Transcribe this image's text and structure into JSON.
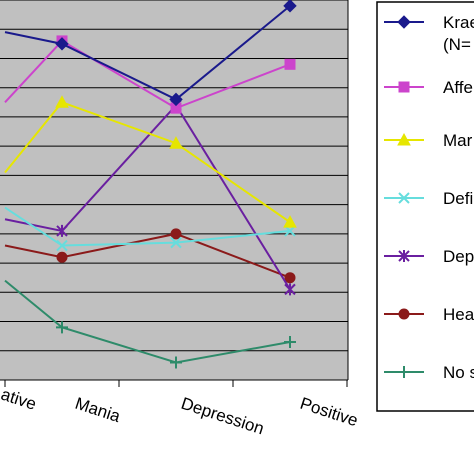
{
  "chart_data": {
    "type": "line",
    "title": "",
    "xlabel": "",
    "ylabel": "",
    "categories": [
      "Negative",
      "Mania",
      "Depression",
      "Positive"
    ],
    "category_labels_visible": [
      "ative",
      "Mania",
      "Depression",
      "Positive"
    ],
    "ylim": [
      0,
      13
    ],
    "gridlines": [
      1,
      2,
      3,
      4,
      5,
      6,
      7,
      8,
      9,
      10,
      11,
      12,
      13
    ],
    "grid": true,
    "legend_position": "right",
    "series": [
      {
        "name": "Krae",
        "name_line2": "(N=",
        "color": "#1a1a8c",
        "marker": "diamond",
        "values": [
          11.9,
          11.5,
          9.6,
          12.8
        ]
      },
      {
        "name": "Affe",
        "color": "#cc44cc",
        "marker": "square",
        "values": [
          9.5,
          11.6,
          9.3,
          10.8
        ]
      },
      {
        "name": "Mar",
        "color": "#e6e600",
        "marker": "triangle",
        "values": [
          7.1,
          9.5,
          8.1,
          5.4
        ]
      },
      {
        "name": "Defi",
        "color": "#66dddd",
        "marker": "x",
        "values": [
          5.9,
          4.6,
          4.7,
          5.1
        ]
      },
      {
        "name": "Dep",
        "color": "#6a1fa0",
        "marker": "asterisk",
        "values": [
          5.5,
          5.1,
          9.4,
          3.1
        ]
      },
      {
        "name": "Hea",
        "color": "#8b1a1a",
        "marker": "circle",
        "values": [
          4.6,
          4.2,
          5.0,
          3.5
        ]
      },
      {
        "name": "No s",
        "color": "#2e8b6a",
        "marker": "plus",
        "values": [
          3.4,
          1.8,
          0.6,
          1.3
        ]
      }
    ]
  }
}
